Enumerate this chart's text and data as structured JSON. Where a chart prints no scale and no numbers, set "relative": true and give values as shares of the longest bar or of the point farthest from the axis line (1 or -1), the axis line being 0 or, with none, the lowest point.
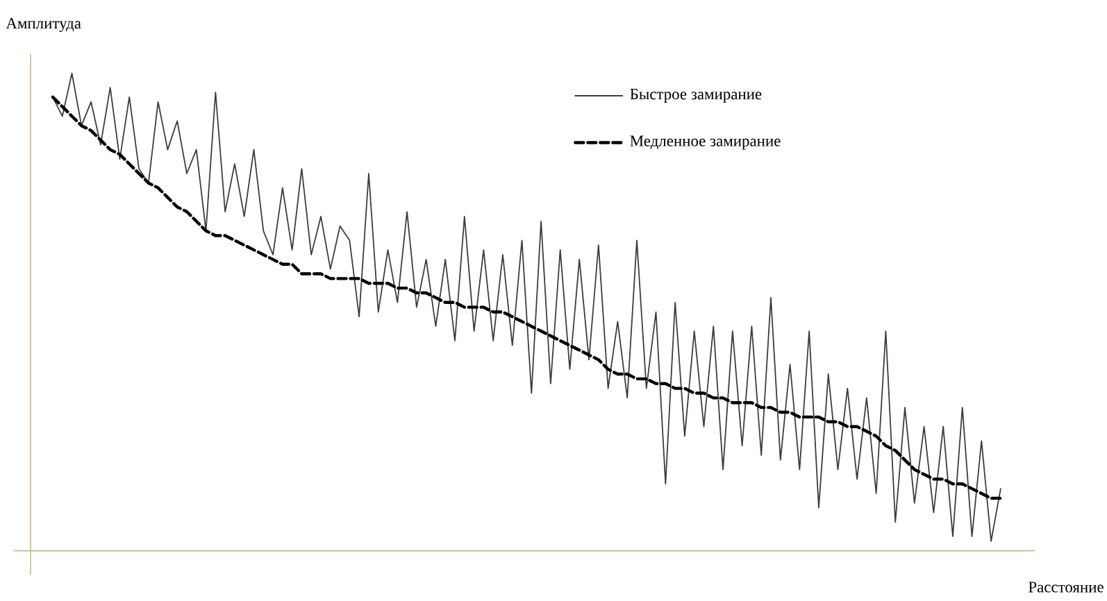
{
  "chart_data": {
    "type": "line",
    "relative": true,
    "xlabel": "Расстояние",
    "ylabel": "Амплитуда",
    "legend": "top right",
    "marker": "none",
    "categories": [
      null,
      null,
      null,
      null,
      null,
      null,
      null,
      null,
      null,
      null,
      null,
      null,
      null,
      null,
      null,
      null,
      null,
      null,
      null,
      null,
      null,
      null,
      null,
      null,
      null,
      null,
      null,
      null,
      null,
      null,
      null,
      null,
      null,
      null,
      null,
      null,
      null,
      null,
      null,
      null,
      null,
      null,
      null,
      null,
      null,
      null,
      null,
      null,
      null,
      null,
      null,
      null,
      null,
      null,
      null,
      null,
      null,
      null,
      null,
      null,
      null,
      null,
      null,
      null,
      null,
      null,
      null,
      null,
      null,
      null,
      null,
      null,
      null,
      null,
      null,
      null,
      null,
      null,
      null,
      null,
      null,
      null,
      null,
      null,
      null,
      null,
      null,
      null,
      null,
      null,
      null,
      null,
      null,
      null,
      null,
      null,
      null,
      null,
      null,
      null
    ],
    "series": [
      {
        "name": "Быстрое замирание",
        "color": "#3c3c3c",
        "line_style": "solid",
        "values": [
          0.95,
          0.91,
          1.0,
          0.89,
          0.94,
          0.85,
          0.97,
          0.82,
          0.95,
          0.8,
          0.77,
          0.94,
          0.84,
          0.9,
          0.79,
          0.84,
          0.67,
          0.96,
          0.71,
          0.81,
          0.7,
          0.84,
          0.67,
          0.62,
          0.76,
          0.63,
          0.8,
          0.62,
          0.7,
          0.59,
          0.68,
          0.65,
          0.49,
          0.79,
          0.5,
          0.63,
          0.52,
          0.71,
          0.51,
          0.61,
          0.47,
          0.61,
          0.44,
          0.7,
          0.46,
          0.63,
          0.44,
          0.62,
          0.43,
          0.65,
          0.33,
          0.69,
          0.35,
          0.63,
          0.38,
          0.61,
          0.4,
          0.64,
          0.34,
          0.48,
          0.32,
          0.65,
          0.34,
          0.5,
          0.14,
          0.52,
          0.24,
          0.46,
          0.26,
          0.47,
          0.17,
          0.46,
          0.22,
          0.47,
          0.2,
          0.53,
          0.19,
          0.39,
          0.17,
          0.46,
          0.09,
          0.37,
          0.17,
          0.34,
          0.15,
          0.32,
          0.12,
          0.46,
          0.06,
          0.3,
          0.1,
          0.26,
          0.08,
          0.26,
          0.03,
          0.3,
          0.03,
          0.23,
          0.02,
          0.13
        ]
      },
      {
        "name": "Медленное замирание",
        "color": "#000000",
        "line_style": "dashed",
        "values": [
          0.95,
          0.93,
          0.91,
          0.89,
          0.88,
          0.86,
          0.84,
          0.83,
          0.81,
          0.79,
          0.77,
          0.76,
          0.74,
          0.72,
          0.71,
          0.69,
          0.67,
          0.66,
          0.66,
          0.65,
          0.64,
          0.63,
          0.62,
          0.61,
          0.6,
          0.6,
          0.58,
          0.58,
          0.58,
          0.57,
          0.57,
          0.57,
          0.57,
          0.56,
          0.56,
          0.56,
          0.55,
          0.55,
          0.54,
          0.54,
          0.53,
          0.52,
          0.52,
          0.51,
          0.51,
          0.51,
          0.5,
          0.5,
          0.49,
          0.48,
          0.47,
          0.46,
          0.45,
          0.44,
          0.43,
          0.42,
          0.41,
          0.4,
          0.38,
          0.37,
          0.37,
          0.36,
          0.36,
          0.35,
          0.35,
          0.34,
          0.34,
          0.33,
          0.33,
          0.32,
          0.32,
          0.31,
          0.31,
          0.31,
          0.3,
          0.3,
          0.29,
          0.29,
          0.28,
          0.28,
          0.28,
          0.27,
          0.27,
          0.26,
          0.26,
          0.25,
          0.24,
          0.22,
          0.21,
          0.19,
          0.17,
          0.16,
          0.15,
          0.15,
          0.14,
          0.14,
          0.13,
          0.12,
          0.11,
          0.11
        ]
      }
    ]
  }
}
